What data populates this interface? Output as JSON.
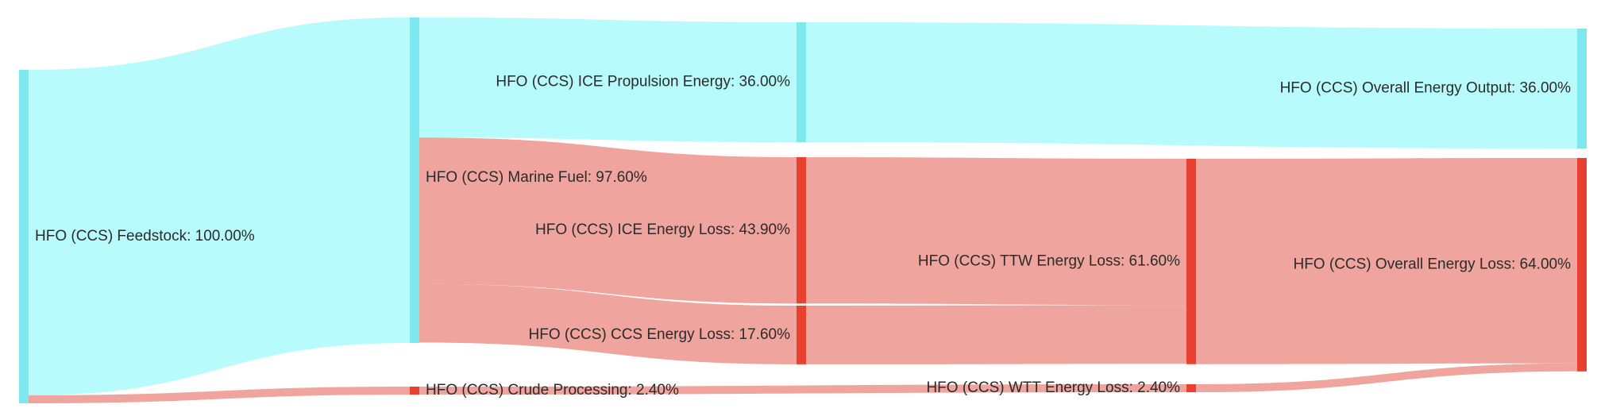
{
  "chart_data": {
    "type": "sankey",
    "unit": "%",
    "colors": {
      "energy_node": "#7fe7f0",
      "energy_link": "#b3fbfc",
      "loss_node": "#e8412f",
      "loss_link": "#ee9f98"
    },
    "nodes": [
      {
        "id": "feedstock",
        "label": "HFO (CCS) Feedstock: 100.00%",
        "value": 100.0,
        "kind": "energy"
      },
      {
        "id": "marine_fuel",
        "label": "HFO (CCS) Marine Fuel: 97.60%",
        "value": 97.6,
        "kind": "energy"
      },
      {
        "id": "crude_processing",
        "label": "HFO (CCS) Crude Processing: 2.40%",
        "value": 2.4,
        "kind": "loss"
      },
      {
        "id": "ice_propulsion",
        "label": "HFO (CCS) ICE Propulsion Energy: 36.00%",
        "value": 36.0,
        "kind": "energy"
      },
      {
        "id": "ice_loss",
        "label": "HFO (CCS) ICE Energy Loss: 43.90%",
        "value": 43.9,
        "kind": "loss"
      },
      {
        "id": "ccs_loss",
        "label": "HFO (CCS) CCS Energy Loss: 17.60%",
        "value": 17.6,
        "kind": "loss"
      },
      {
        "id": "ttw_loss",
        "label": "HFO (CCS) TTW Energy Loss: 61.60%",
        "value": 61.6,
        "kind": "loss"
      },
      {
        "id": "wtt_loss",
        "label": "HFO (CCS) WTT Energy Loss: 2.40%",
        "value": 2.4,
        "kind": "loss"
      },
      {
        "id": "overall_output",
        "label": "HFO (CCS) Overall Energy Output: 36.00%",
        "value": 36.0,
        "kind": "energy"
      },
      {
        "id": "overall_loss",
        "label": "HFO (CCS) Overall Energy Loss: 64.00%",
        "value": 64.0,
        "kind": "loss"
      }
    ],
    "links": [
      {
        "source": "feedstock",
        "target": "marine_fuel",
        "value": 97.6,
        "kind": "energy"
      },
      {
        "source": "feedstock",
        "target": "crude_processing",
        "value": 2.4,
        "kind": "loss"
      },
      {
        "source": "marine_fuel",
        "target": "ice_propulsion",
        "value": 36.0,
        "kind": "energy"
      },
      {
        "source": "marine_fuel",
        "target": "ice_loss",
        "value": 43.9,
        "kind": "loss"
      },
      {
        "source": "marine_fuel",
        "target": "ccs_loss",
        "value": 17.6,
        "kind": "loss"
      },
      {
        "source": "crude_processing",
        "target": "wtt_loss",
        "value": 2.4,
        "kind": "loss"
      },
      {
        "source": "ice_propulsion",
        "target": "overall_output",
        "value": 36.0,
        "kind": "energy"
      },
      {
        "source": "ice_loss",
        "target": "ttw_loss",
        "value": 43.9,
        "kind": "loss"
      },
      {
        "source": "ccs_loss",
        "target": "ttw_loss",
        "value": 17.6,
        "kind": "loss"
      },
      {
        "source": "ttw_loss",
        "target": "overall_loss",
        "value": 61.6,
        "kind": "loss"
      },
      {
        "source": "wtt_loss",
        "target": "overall_loss",
        "value": 2.4,
        "kind": "loss"
      }
    ]
  }
}
